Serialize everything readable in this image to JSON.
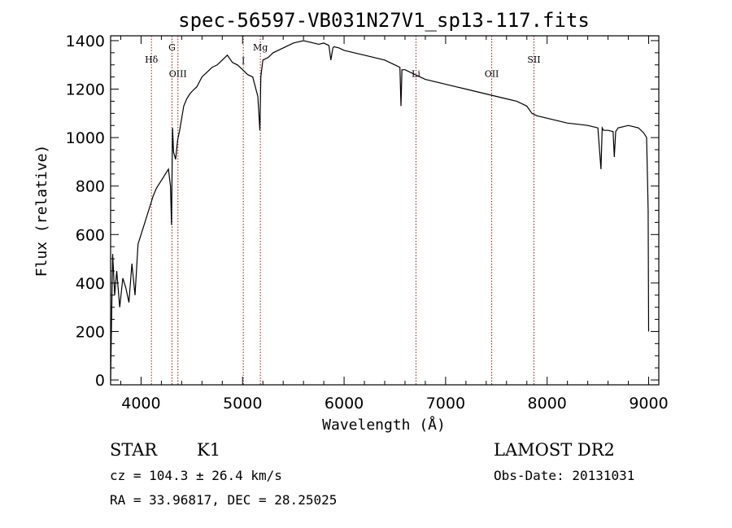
{
  "chart_data": {
    "type": "line",
    "title": "spec-56597-VB031N27V1_sp13-117.fits",
    "xlabel": "Wavelength (Å)",
    "ylabel": "Flux (relative)",
    "xlim": [
      3700,
      9100
    ],
    "ylim": [
      -20,
      1420
    ],
    "xticks": [
      4000,
      5000,
      6000,
      7000,
      8000,
      9000
    ],
    "yticks": [
      0,
      200,
      400,
      600,
      800,
      1000,
      1200,
      1400
    ],
    "grid": false,
    "series": [
      {
        "x": [
          3700,
          3720,
          3740,
          3760,
          3790,
          3820,
          3850,
          3880,
          3910,
          3940,
          3970,
          4000,
          4030,
          4060,
          4090,
          4120,
          4150,
          4180,
          4210,
          4240,
          4270,
          4290,
          4300,
          4310,
          4320,
          4340,
          4360,
          4380,
          4400,
          4420,
          4450,
          4480,
          4500,
          4550,
          4600,
          4650,
          4700,
          4750,
          4800,
          4850,
          4900,
          4950,
          5000,
          5050,
          5100,
          5150,
          5170,
          5180,
          5200,
          5250,
          5300,
          5350,
          5400,
          5450,
          5500,
          5550,
          5600,
          5650,
          5700,
          5750,
          5800,
          5850,
          5870,
          5890,
          5900,
          5950,
          6000,
          6100,
          6200,
          6300,
          6400,
          6500,
          6550,
          6560,
          6570,
          6600,
          6700,
          6800,
          6900,
          7000,
          7100,
          7200,
          7300,
          7400,
          7500,
          7600,
          7700,
          7800,
          7850,
          7900,
          8000,
          8100,
          8200,
          8300,
          8400,
          8500,
          8530,
          8542,
          8555,
          8600,
          8650,
          8662,
          8675,
          8700,
          8800,
          8900,
          8950,
          8980,
          8990,
          8995,
          9000
        ],
        "y": [
          0,
          520,
          350,
          450,
          300,
          420,
          380,
          320,
          480,
          350,
          560,
          600,
          640,
          680,
          720,
          760,
          790,
          810,
          830,
          850,
          870,
          800,
          640,
          1040,
          940,
          910,
          990,
          1030,
          1080,
          1130,
          1160,
          1180,
          1190,
          1210,
          1250,
          1270,
          1290,
          1300,
          1320,
          1340,
          1310,
          1300,
          1280,
          1260,
          1250,
          1170,
          1030,
          1250,
          1320,
          1330,
          1350,
          1360,
          1370,
          1380,
          1390,
          1395,
          1400,
          1395,
          1390,
          1385,
          1390,
          1380,
          1320,
          1370,
          1375,
          1370,
          1360,
          1350,
          1340,
          1330,
          1320,
          1300,
          1290,
          1130,
          1280,
          1280,
          1260,
          1240,
          1230,
          1220,
          1210,
          1200,
          1190,
          1180,
          1170,
          1160,
          1150,
          1130,
          1100,
          1090,
          1080,
          1070,
          1060,
          1055,
          1050,
          1040,
          870,
          1040,
          1030,
          1030,
          1025,
          920,
          1025,
          1040,
          1050,
          1040,
          1020,
          1000,
          800,
          700,
          200
        ]
      }
    ],
    "lines": [
      {
        "x": 4102,
        "label": "Hδ",
        "label_y": 1310
      },
      {
        "x": 4305,
        "label": "G",
        "label_y": 1360
      },
      {
        "x": 4363,
        "label": "OIII",
        "label_y": 1250
      },
      {
        "x": 5007,
        "label": "I",
        "label_y": 1305
      },
      {
        "x": 5175,
        "label": "Mg",
        "label_y": 1360
      },
      {
        "x": 6708,
        "label": "Li",
        "label_y": 1250
      },
      {
        "x": 7454,
        "label": "OII",
        "label_y": 1250
      },
      {
        "x": 7870,
        "label": "SII",
        "label_y": 1310
      }
    ]
  },
  "footer": {
    "object_type": "STAR",
    "subclass": "K1",
    "survey": "LAMOST DR2",
    "cz": "cz = 104.3 ± 26.4 km/s",
    "obs_date": "Obs-Date: 20131031",
    "coords": "RA =  33.96817, DEC =  28.25025"
  },
  "colors": {
    "spectrum": "#000000",
    "marker_lines": "#8b1a1a",
    "frame": "#000000"
  }
}
